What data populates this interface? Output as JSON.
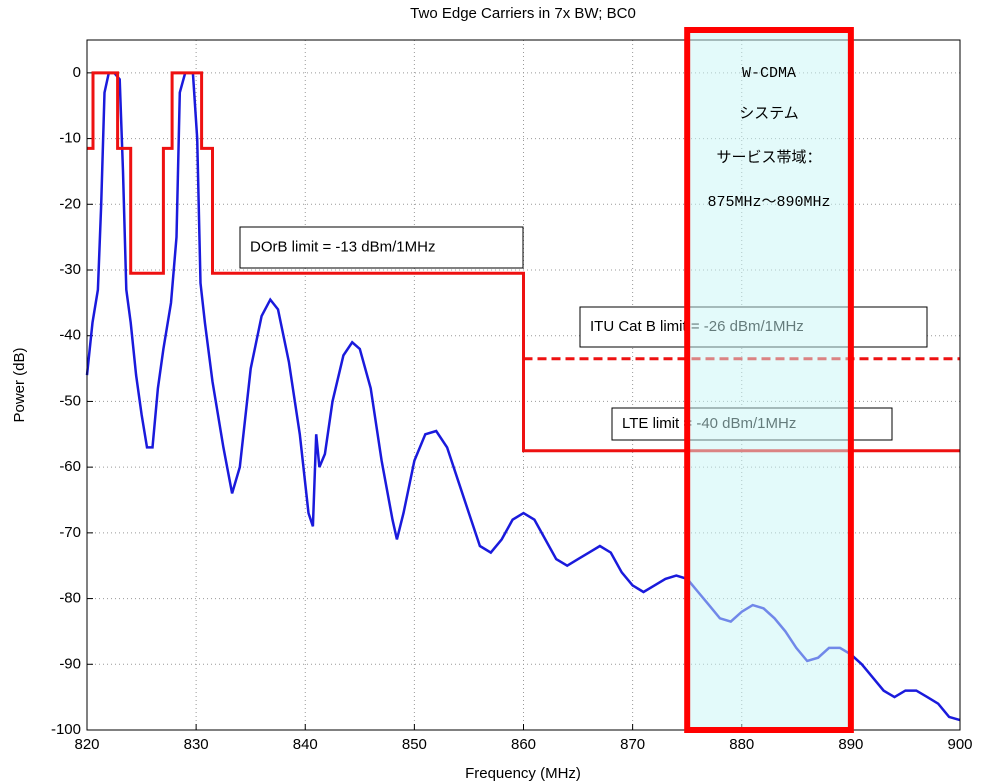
{
  "chart_data": {
    "type": "line",
    "title": "Two Edge Carriers in 7x BW; BC0",
    "x_label": "Frequency (MHz)",
    "y_label": "Power (dB)",
    "xlim": [
      820,
      900
    ],
    "xticks": [
      820,
      830,
      840,
      850,
      860,
      870,
      880,
      890,
      900
    ],
    "ylim": [
      -100,
      5
    ],
    "yticks": [
      -100,
      -90,
      -80,
      -70,
      -60,
      -50,
      -40,
      -30,
      -20,
      -10,
      0
    ],
    "grid": true,
    "series": [
      {
        "color": "#1a1adc",
        "style": "solid",
        "width": 2.5,
        "x": [
          820,
          820.5,
          821,
          821.3,
          821.6,
          822,
          822.5,
          823,
          823.3,
          823.6,
          824,
          824.5,
          825,
          825.5,
          826,
          826.5,
          827,
          827.7,
          828.2,
          828.5,
          829,
          829.7,
          830.1,
          830.4,
          830.8,
          831.5,
          832.5,
          833.3,
          834,
          835,
          836,
          836.8,
          837.5,
          838.5,
          839.5,
          840.3,
          840.7,
          841,
          841.3,
          841.8,
          842.5,
          843.5,
          844.3,
          845,
          846,
          847,
          848,
          848.4,
          849,
          850,
          851,
          852,
          853,
          854,
          855,
          856,
          857,
          858,
          859,
          860,
          861,
          862,
          863,
          864,
          865,
          866,
          867,
          868,
          869,
          870,
          871,
          872,
          873,
          874,
          875,
          876,
          877,
          878,
          879,
          880,
          881,
          882,
          883,
          884,
          885,
          886,
          887,
          888,
          889,
          890,
          891,
          892,
          893,
          894,
          895,
          896,
          897,
          898,
          899,
          900
        ],
        "values": [
          -46,
          -38,
          -33,
          -20,
          -3,
          0,
          0,
          -1,
          -15,
          -33,
          -38,
          -46,
          -52,
          -57,
          -57,
          -48,
          -42,
          -35,
          -25,
          -3,
          0,
          0,
          -10,
          -32,
          -38,
          -47,
          -57,
          -64,
          -60,
          -45,
          -37,
          -34.5,
          -36,
          -44,
          -55,
          -67,
          -69,
          -55,
          -60,
          -58,
          -50,
          -43,
          -41,
          -42,
          -48,
          -59,
          -68,
          -71,
          -67,
          -59,
          -55,
          -54.5,
          -57,
          -62,
          -67,
          -72,
          -73,
          -71,
          -68,
          -67,
          -68,
          -71,
          -74,
          -75,
          -74,
          -73,
          -72,
          -73,
          -76,
          -78,
          -79,
          -78,
          -77,
          -76.5,
          -77,
          -79,
          -81,
          -83,
          -83.5,
          -82,
          -81,
          -81.5,
          -83,
          -85,
          -87.5,
          -89.5,
          -89,
          -87.5,
          -87.5,
          -88.5,
          -90,
          -92,
          -94,
          -95,
          -94,
          -94,
          -95,
          -96,
          -98,
          -98.5
        ]
      },
      {
        "color": "#ee1111",
        "style": "solid",
        "width": 3,
        "x": [
          820,
          820.55,
          820.55,
          822.8,
          822.8,
          824,
          824,
          827,
          827,
          827.8,
          827.8,
          830.5,
          830.5,
          831.5,
          831.5,
          860,
          860,
          900
        ],
        "values": [
          -11.5,
          -11.5,
          0,
          0,
          -11.5,
          -11.5,
          -30.5,
          -30.5,
          -11.5,
          -11.5,
          0,
          0,
          -11.5,
          -11.5,
          -30.5,
          -30.5,
          -57.5,
          -57.5
        ]
      },
      {
        "color": "#ee1111",
        "style": "dashed",
        "width": 3,
        "x": [
          860,
          900
        ],
        "values": [
          -43.5,
          -43.5
        ]
      }
    ],
    "annotations": [
      "DOrB limit = -13 dBm/1MHz",
      "ITU Cat B limit = -26 dBm/1MHz",
      "LTE limit = -40 dBm/1MHz"
    ],
    "highlight": {
      "xrange": [
        875,
        890
      ],
      "lines": [
        "W-CDMA",
        "システム",
        "サービス帯域：",
        "875MHz～890MHz"
      ]
    }
  }
}
